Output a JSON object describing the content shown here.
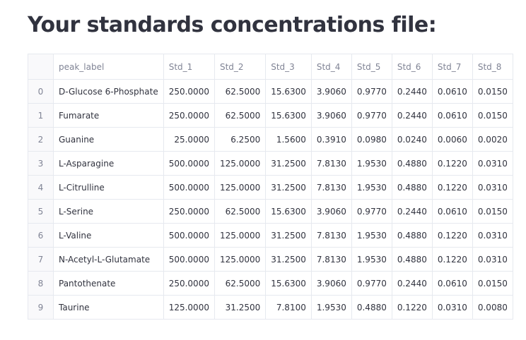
{
  "page": {
    "title": "Your standards concentrations file:"
  },
  "table": {
    "columns": [
      "peak_label",
      "Std_1",
      "Std_2",
      "Std_3",
      "Std_4",
      "Std_5",
      "Std_6",
      "Std_7",
      "Std_8"
    ],
    "rows": [
      {
        "index": "0",
        "cells": [
          "D-Glucose 6-Phosphate",
          "250.0000",
          "62.5000",
          "15.6300",
          "3.9060",
          "0.9770",
          "0.2440",
          "0.0610",
          "0.0150"
        ]
      },
      {
        "index": "1",
        "cells": [
          "Fumarate",
          "250.0000",
          "62.5000",
          "15.6300",
          "3.9060",
          "0.9770",
          "0.2440",
          "0.0610",
          "0.0150"
        ]
      },
      {
        "index": "2",
        "cells": [
          "Guanine",
          "25.0000",
          "6.2500",
          "1.5600",
          "0.3910",
          "0.0980",
          "0.0240",
          "0.0060",
          "0.0020"
        ]
      },
      {
        "index": "3",
        "cells": [
          "L-Asparagine",
          "500.0000",
          "125.0000",
          "31.2500",
          "7.8130",
          "1.9530",
          "0.4880",
          "0.1220",
          "0.0310"
        ]
      },
      {
        "index": "4",
        "cells": [
          "L-Citrulline",
          "500.0000",
          "125.0000",
          "31.2500",
          "7.8130",
          "1.9530",
          "0.4880",
          "0.1220",
          "0.0310"
        ]
      },
      {
        "index": "5",
        "cells": [
          "L-Serine",
          "250.0000",
          "62.5000",
          "15.6300",
          "3.9060",
          "0.9770",
          "0.2440",
          "0.0610",
          "0.0150"
        ]
      },
      {
        "index": "6",
        "cells": [
          "L-Valine",
          "500.0000",
          "125.0000",
          "31.2500",
          "7.8130",
          "1.9530",
          "0.4880",
          "0.1220",
          "0.0310"
        ]
      },
      {
        "index": "7",
        "cells": [
          "N-Acetyl-L-Glutamate",
          "500.0000",
          "125.0000",
          "31.2500",
          "7.8130",
          "1.9530",
          "0.4880",
          "0.1220",
          "0.0310"
        ]
      },
      {
        "index": "8",
        "cells": [
          "Pantothenate",
          "250.0000",
          "62.5000",
          "15.6300",
          "3.9060",
          "0.9770",
          "0.2440",
          "0.0610",
          "0.0150"
        ]
      },
      {
        "index": "9",
        "cells": [
          "Taurine",
          "125.0000",
          "31.2500",
          "7.8100",
          "1.9530",
          "0.4880",
          "0.1220",
          "0.0310",
          "0.0080"
        ]
      }
    ]
  }
}
